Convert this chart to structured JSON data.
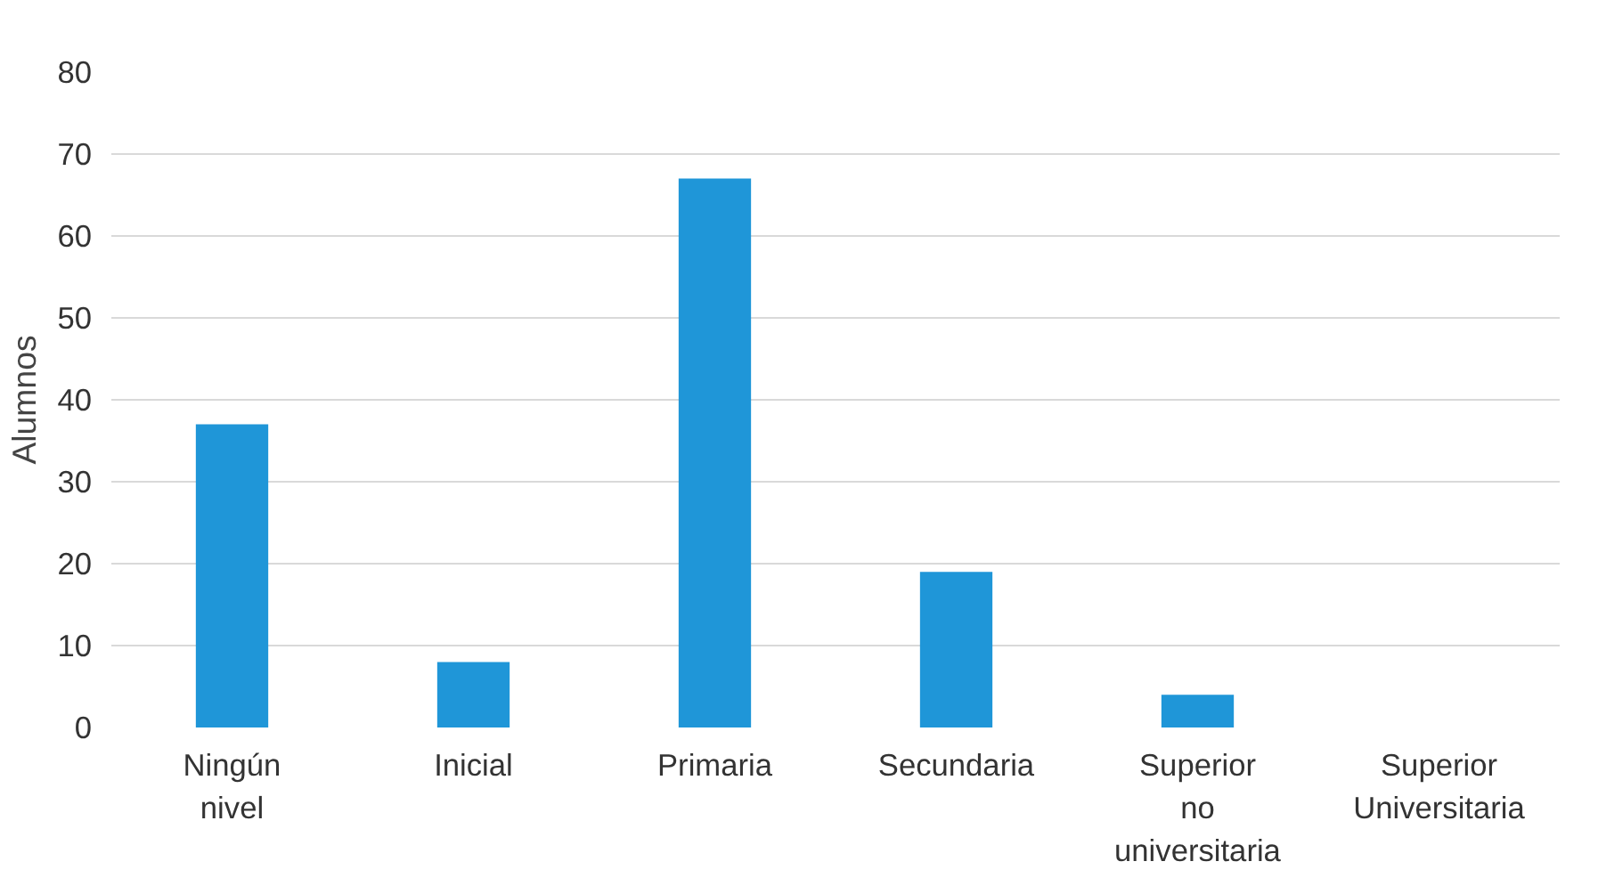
{
  "chart_data": {
    "type": "bar",
    "ylabel": "Alumnos",
    "categories": [
      "Ningún nivel",
      "Inicial",
      "Primaria",
      "Secundaria",
      "Superior no universitaria",
      "Superior Universitaria"
    ],
    "values": [
      37,
      8,
      67,
      19,
      4,
      0
    ],
    "color": "#1f96d8",
    "ylim": [
      0,
      80
    ],
    "yticks": [
      0,
      10,
      20,
      30,
      40,
      50,
      60,
      70,
      80
    ],
    "grid": "y"
  }
}
